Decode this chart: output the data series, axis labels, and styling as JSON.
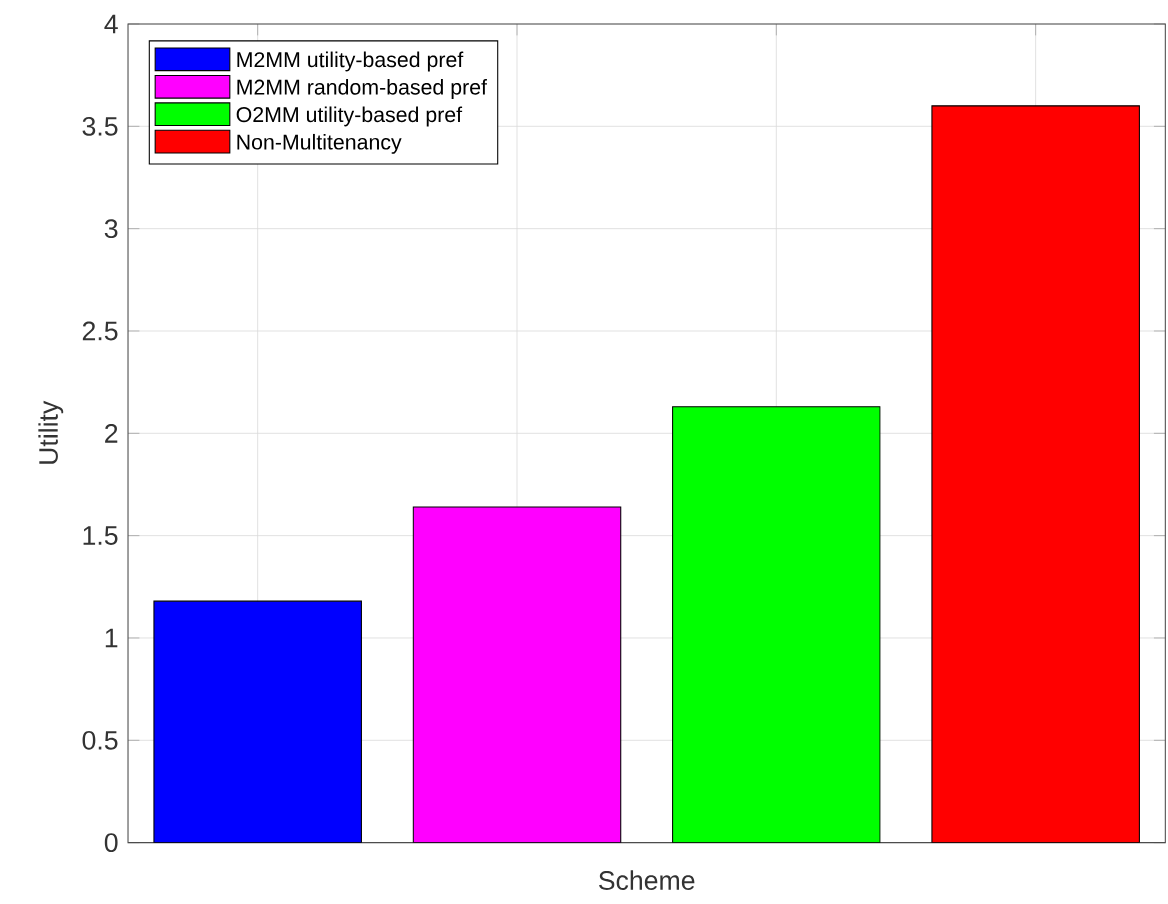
{
  "chart_data": {
    "type": "bar",
    "xlabel": "Scheme",
    "ylabel": "Utility",
    "categories": [
      null,
      null,
      null,
      null
    ],
    "series": [
      {
        "name": "M2MM utility-based pref",
        "color": "#0000ff",
        "values": [
          1.18,
          null,
          null,
          null
        ]
      },
      {
        "name": "M2MM random-based pref",
        "color": "#ff00ff",
        "values": [
          null,
          1.64,
          null,
          null
        ]
      },
      {
        "name": "O2MM utility-based pref",
        "color": "#00ff00",
        "values": [
          null,
          null,
          2.13,
          null
        ]
      },
      {
        "name": "Non-Multitenancy",
        "color": "#ff0000",
        "values": [
          null,
          null,
          null,
          3.6
        ]
      }
    ],
    "ylim": [
      0,
      4
    ],
    "yticks": [
      0,
      0.5,
      1,
      1.5,
      2,
      2.5,
      3,
      3.5,
      4
    ],
    "grid": true,
    "legend": "top left",
    "tick_labels": "y"
  }
}
